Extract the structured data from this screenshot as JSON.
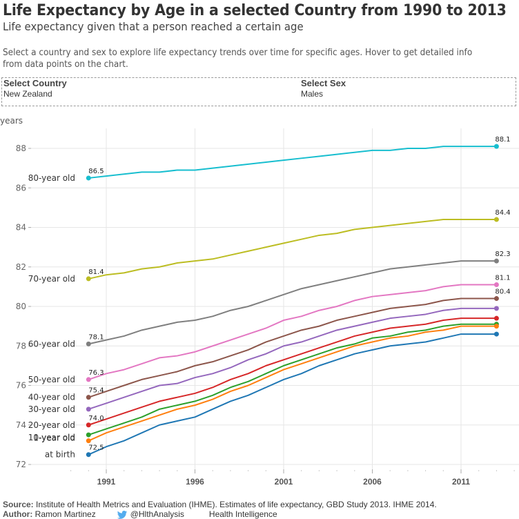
{
  "header": {
    "title": "Life Expectancy by Age in a selected Country from 1990 to 2013",
    "subtitle": "Life expectancy given that a person reached a certain age",
    "description": "Select a country and sex to explore life expectancy trends over time for specific ages. Hover to get detailed info from data points on the chart."
  },
  "filters": {
    "country_label": "Select Country",
    "country_value": "New Zealand",
    "sex_label": "Select Sex",
    "sex_value": "Males"
  },
  "footer": {
    "source_label": "Source:",
    "source_text": "Institute of Health Metrics and Evaluation (IHME). Estimates of life expectancy, GBD Study 2013. IHME 2014.",
    "author_label": "Author:",
    "author_name": "Ramon Martinez",
    "twitter_icon": "twitter-bird-icon",
    "twitter_handle": "@HlthAnalysis",
    "org": "Health Intelligence",
    "twitter_color": "#55acee"
  },
  "chart_data": {
    "type": "line",
    "title": "Life Expectancy by Age in a selected Country from 1990 to 2013",
    "xlabel": "",
    "ylabel": "years",
    "x": [
      1990,
      1991,
      1992,
      1993,
      1994,
      1995,
      1996,
      1997,
      1998,
      1999,
      2000,
      2001,
      2002,
      2003,
      2004,
      2005,
      2006,
      2007,
      2008,
      2009,
      2010,
      2011,
      2012,
      2013
    ],
    "xticks": [
      1991,
      1996,
      2001,
      2006,
      2011
    ],
    "xtick_labels": [
      "1991",
      "1996",
      "2001",
      "2006",
      "2011"
    ],
    "yticks": [
      72,
      74,
      76,
      78,
      80,
      82,
      84,
      86,
      88
    ],
    "ytick_labels": [
      "72",
      "74",
      "76",
      "78",
      "80",
      "82",
      "84",
      "86",
      "88"
    ],
    "xlim": [
      1988.6,
      2014.2
    ],
    "ylim": [
      71.8,
      88.9
    ],
    "grid": true,
    "legend": "inline-left",
    "series": [
      {
        "name": "80-year old",
        "color": "#17becf",
        "start_label": "86.5",
        "end_label": "88.1",
        "values": [
          86.5,
          86.6,
          86.7,
          86.8,
          86.8,
          86.9,
          86.9,
          87.0,
          87.1,
          87.2,
          87.3,
          87.4,
          87.5,
          87.6,
          87.7,
          87.8,
          87.9,
          87.9,
          88.0,
          88.0,
          88.1,
          88.1,
          88.1,
          88.1
        ]
      },
      {
        "name": "70-year old",
        "color": "#bcbd22",
        "start_label": "81.4",
        "end_label": "84.4",
        "values": [
          81.4,
          81.6,
          81.7,
          81.9,
          82.0,
          82.2,
          82.3,
          82.4,
          82.6,
          82.8,
          83.0,
          83.2,
          83.4,
          83.6,
          83.7,
          83.9,
          84.0,
          84.1,
          84.2,
          84.3,
          84.4,
          84.4,
          84.4,
          84.4
        ]
      },
      {
        "name": "60-year old",
        "color": "#7f7f7f",
        "start_label": "78.1",
        "end_label": "82.3",
        "values": [
          78.1,
          78.3,
          78.5,
          78.8,
          79.0,
          79.2,
          79.3,
          79.5,
          79.8,
          80.0,
          80.3,
          80.6,
          80.9,
          81.1,
          81.3,
          81.5,
          81.7,
          81.9,
          82.0,
          82.1,
          82.2,
          82.3,
          82.3,
          82.3
        ]
      },
      {
        "name": "50-year old",
        "color": "#e377c2",
        "start_label": "76.3",
        "end_label": "81.1",
        "values": [
          76.3,
          76.6,
          76.8,
          77.1,
          77.4,
          77.5,
          77.7,
          78.0,
          78.3,
          78.6,
          78.9,
          79.3,
          79.5,
          79.8,
          80.0,
          80.3,
          80.5,
          80.6,
          80.7,
          80.8,
          81.0,
          81.1,
          81.1,
          81.1
        ]
      },
      {
        "name": "40-year old",
        "color": "#8c564b",
        "start_label": "75.4",
        "end_label": "80.4",
        "values": [
          75.4,
          75.7,
          76.0,
          76.3,
          76.5,
          76.7,
          77.0,
          77.2,
          77.5,
          77.8,
          78.2,
          78.5,
          78.8,
          79.0,
          79.3,
          79.5,
          79.7,
          79.9,
          80.0,
          80.1,
          80.3,
          80.4,
          80.4,
          80.4
        ]
      },
      {
        "name": "30-year old",
        "color": "#9467bd",
        "start_label": "",
        "end_label": "",
        "values": [
          74.8,
          75.1,
          75.4,
          75.7,
          76.0,
          76.1,
          76.4,
          76.6,
          76.9,
          77.3,
          77.6,
          78.0,
          78.2,
          78.5,
          78.8,
          79.0,
          79.2,
          79.4,
          79.5,
          79.6,
          79.8,
          79.9,
          79.9,
          79.9
        ]
      },
      {
        "name": "20-year old",
        "color": "#d62728",
        "start_label": "74.0",
        "end_label": "",
        "values": [
          74.0,
          74.3,
          74.6,
          74.9,
          75.2,
          75.4,
          75.6,
          75.9,
          76.3,
          76.6,
          77.0,
          77.3,
          77.6,
          77.9,
          78.2,
          78.5,
          78.7,
          78.9,
          79.0,
          79.1,
          79.3,
          79.4,
          79.4,
          79.4
        ]
      },
      {
        "name": "10-year old",
        "color": "#2ca02c",
        "start_label": "",
        "end_label": "",
        "values": [
          73.5,
          73.8,
          74.1,
          74.4,
          74.8,
          75.0,
          75.2,
          75.5,
          75.9,
          76.2,
          76.6,
          77.0,
          77.3,
          77.6,
          77.9,
          78.1,
          78.4,
          78.5,
          78.7,
          78.8,
          79.0,
          79.1,
          79.1,
          79.1
        ]
      },
      {
        "name": "1-year old",
        "color": "#ff7f0e",
        "start_label": "",
        "end_label": "",
        "values": [
          73.2,
          73.6,
          73.9,
          74.2,
          74.5,
          74.8,
          75.0,
          75.3,
          75.7,
          76.0,
          76.4,
          76.8,
          77.1,
          77.4,
          77.7,
          78.0,
          78.2,
          78.4,
          78.5,
          78.7,
          78.8,
          79.0,
          79.0,
          79.0
        ]
      },
      {
        "name": "at birth",
        "color": "#1f77b4",
        "start_label": "72.5",
        "end_label": "",
        "values": [
          72.5,
          72.9,
          73.2,
          73.6,
          74.0,
          74.2,
          74.4,
          74.8,
          75.2,
          75.5,
          75.9,
          76.3,
          76.6,
          77.0,
          77.3,
          77.6,
          77.8,
          78.0,
          78.1,
          78.2,
          78.4,
          78.6,
          78.6,
          78.6
        ]
      }
    ]
  }
}
